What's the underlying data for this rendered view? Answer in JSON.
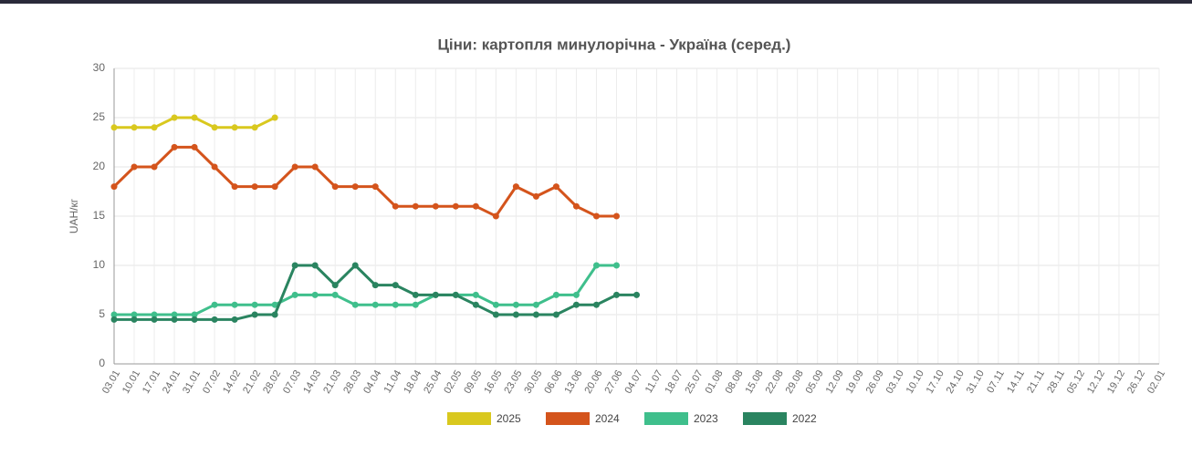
{
  "chart_data": {
    "type": "line",
    "title": "Ціни: картопля минулорічна - Україна (серед.)",
    "y_label": "UAH/кг",
    "categories": [
      "03.01",
      "10.01",
      "17.01",
      "24.01",
      "31.01",
      "07.02",
      "14.02",
      "21.02",
      "28.02",
      "07.03",
      "14.03",
      "21.03",
      "28.03",
      "04.04",
      "11.04",
      "18.04",
      "25.04",
      "02.05",
      "09.05",
      "16.05",
      "23.05",
      "30.05",
      "06.06",
      "13.06",
      "20.06",
      "27.06",
      "04.07",
      "11.07",
      "18.07",
      "25.07",
      "01.08",
      "08.08",
      "15.08",
      "22.08",
      "29.08",
      "05.09",
      "12.09",
      "19.09",
      "26.09",
      "03.10",
      "10.10",
      "17.10",
      "24.10",
      "31.10",
      "07.11",
      "14.11",
      "21.11",
      "28.11",
      "05.12",
      "12.12",
      "19.12",
      "26.12",
      "02.01"
    ],
    "series": [
      {
        "name": "2025",
        "color": "#d9c81e",
        "values": [
          24,
          24,
          24,
          25,
          25,
          24,
          24,
          24,
          25,
          null,
          null,
          null,
          null,
          null,
          null,
          null,
          null,
          null,
          null,
          null,
          null,
          null,
          null,
          null,
          null,
          null,
          null,
          null,
          null,
          null,
          null,
          null,
          null,
          null,
          null,
          null,
          null,
          null,
          null,
          null,
          null,
          null,
          null,
          null,
          null,
          null,
          null,
          null,
          null,
          null,
          null,
          null,
          null
        ]
      },
      {
        "name": "2024",
        "color": "#d4541c",
        "values": [
          18,
          20,
          20,
          22,
          22,
          20,
          18,
          18,
          18,
          20,
          20,
          18,
          18,
          18,
          16,
          16,
          16,
          16,
          16,
          15,
          18,
          17,
          18,
          16,
          15,
          15,
          null,
          null,
          null,
          null,
          null,
          null,
          null,
          null,
          null,
          null,
          null,
          null,
          null,
          null,
          null,
          null,
          null,
          null,
          null,
          null,
          null,
          null,
          null,
          null,
          null,
          null,
          null
        ]
      },
      {
        "name": "2023",
        "color": "#3fbf8c",
        "values": [
          5,
          5,
          5,
          5,
          5,
          6,
          6,
          6,
          6,
          7,
          7,
          7,
          6,
          6,
          6,
          6,
          7,
          7,
          7,
          6,
          6,
          6,
          7,
          7,
          10,
          10,
          null,
          null,
          null,
          null,
          null,
          null,
          null,
          null,
          null,
          null,
          null,
          null,
          null,
          null,
          null,
          null,
          null,
          null,
          null,
          null,
          null,
          null,
          null,
          null,
          null,
          null,
          null
        ]
      },
      {
        "name": "2022",
        "color": "#2a8460",
        "values": [
          4.5,
          4.5,
          4.5,
          4.5,
          4.5,
          4.5,
          4.5,
          5,
          5,
          10,
          10,
          8,
          10,
          8,
          8,
          7,
          7,
          7,
          6,
          5,
          5,
          5,
          5,
          6,
          6,
          7,
          7,
          null,
          null,
          null,
          null,
          null,
          null,
          null,
          null,
          null,
          null,
          null,
          null,
          null,
          null,
          null,
          null,
          null,
          null,
          null,
          null,
          null,
          null,
          null,
          null,
          null,
          null
        ]
      }
    ],
    "ylim": [
      0,
      30
    ],
    "yticks": [
      0,
      5,
      10,
      15,
      20,
      25,
      30
    ],
    "grid": true,
    "legend": "bottom"
  }
}
